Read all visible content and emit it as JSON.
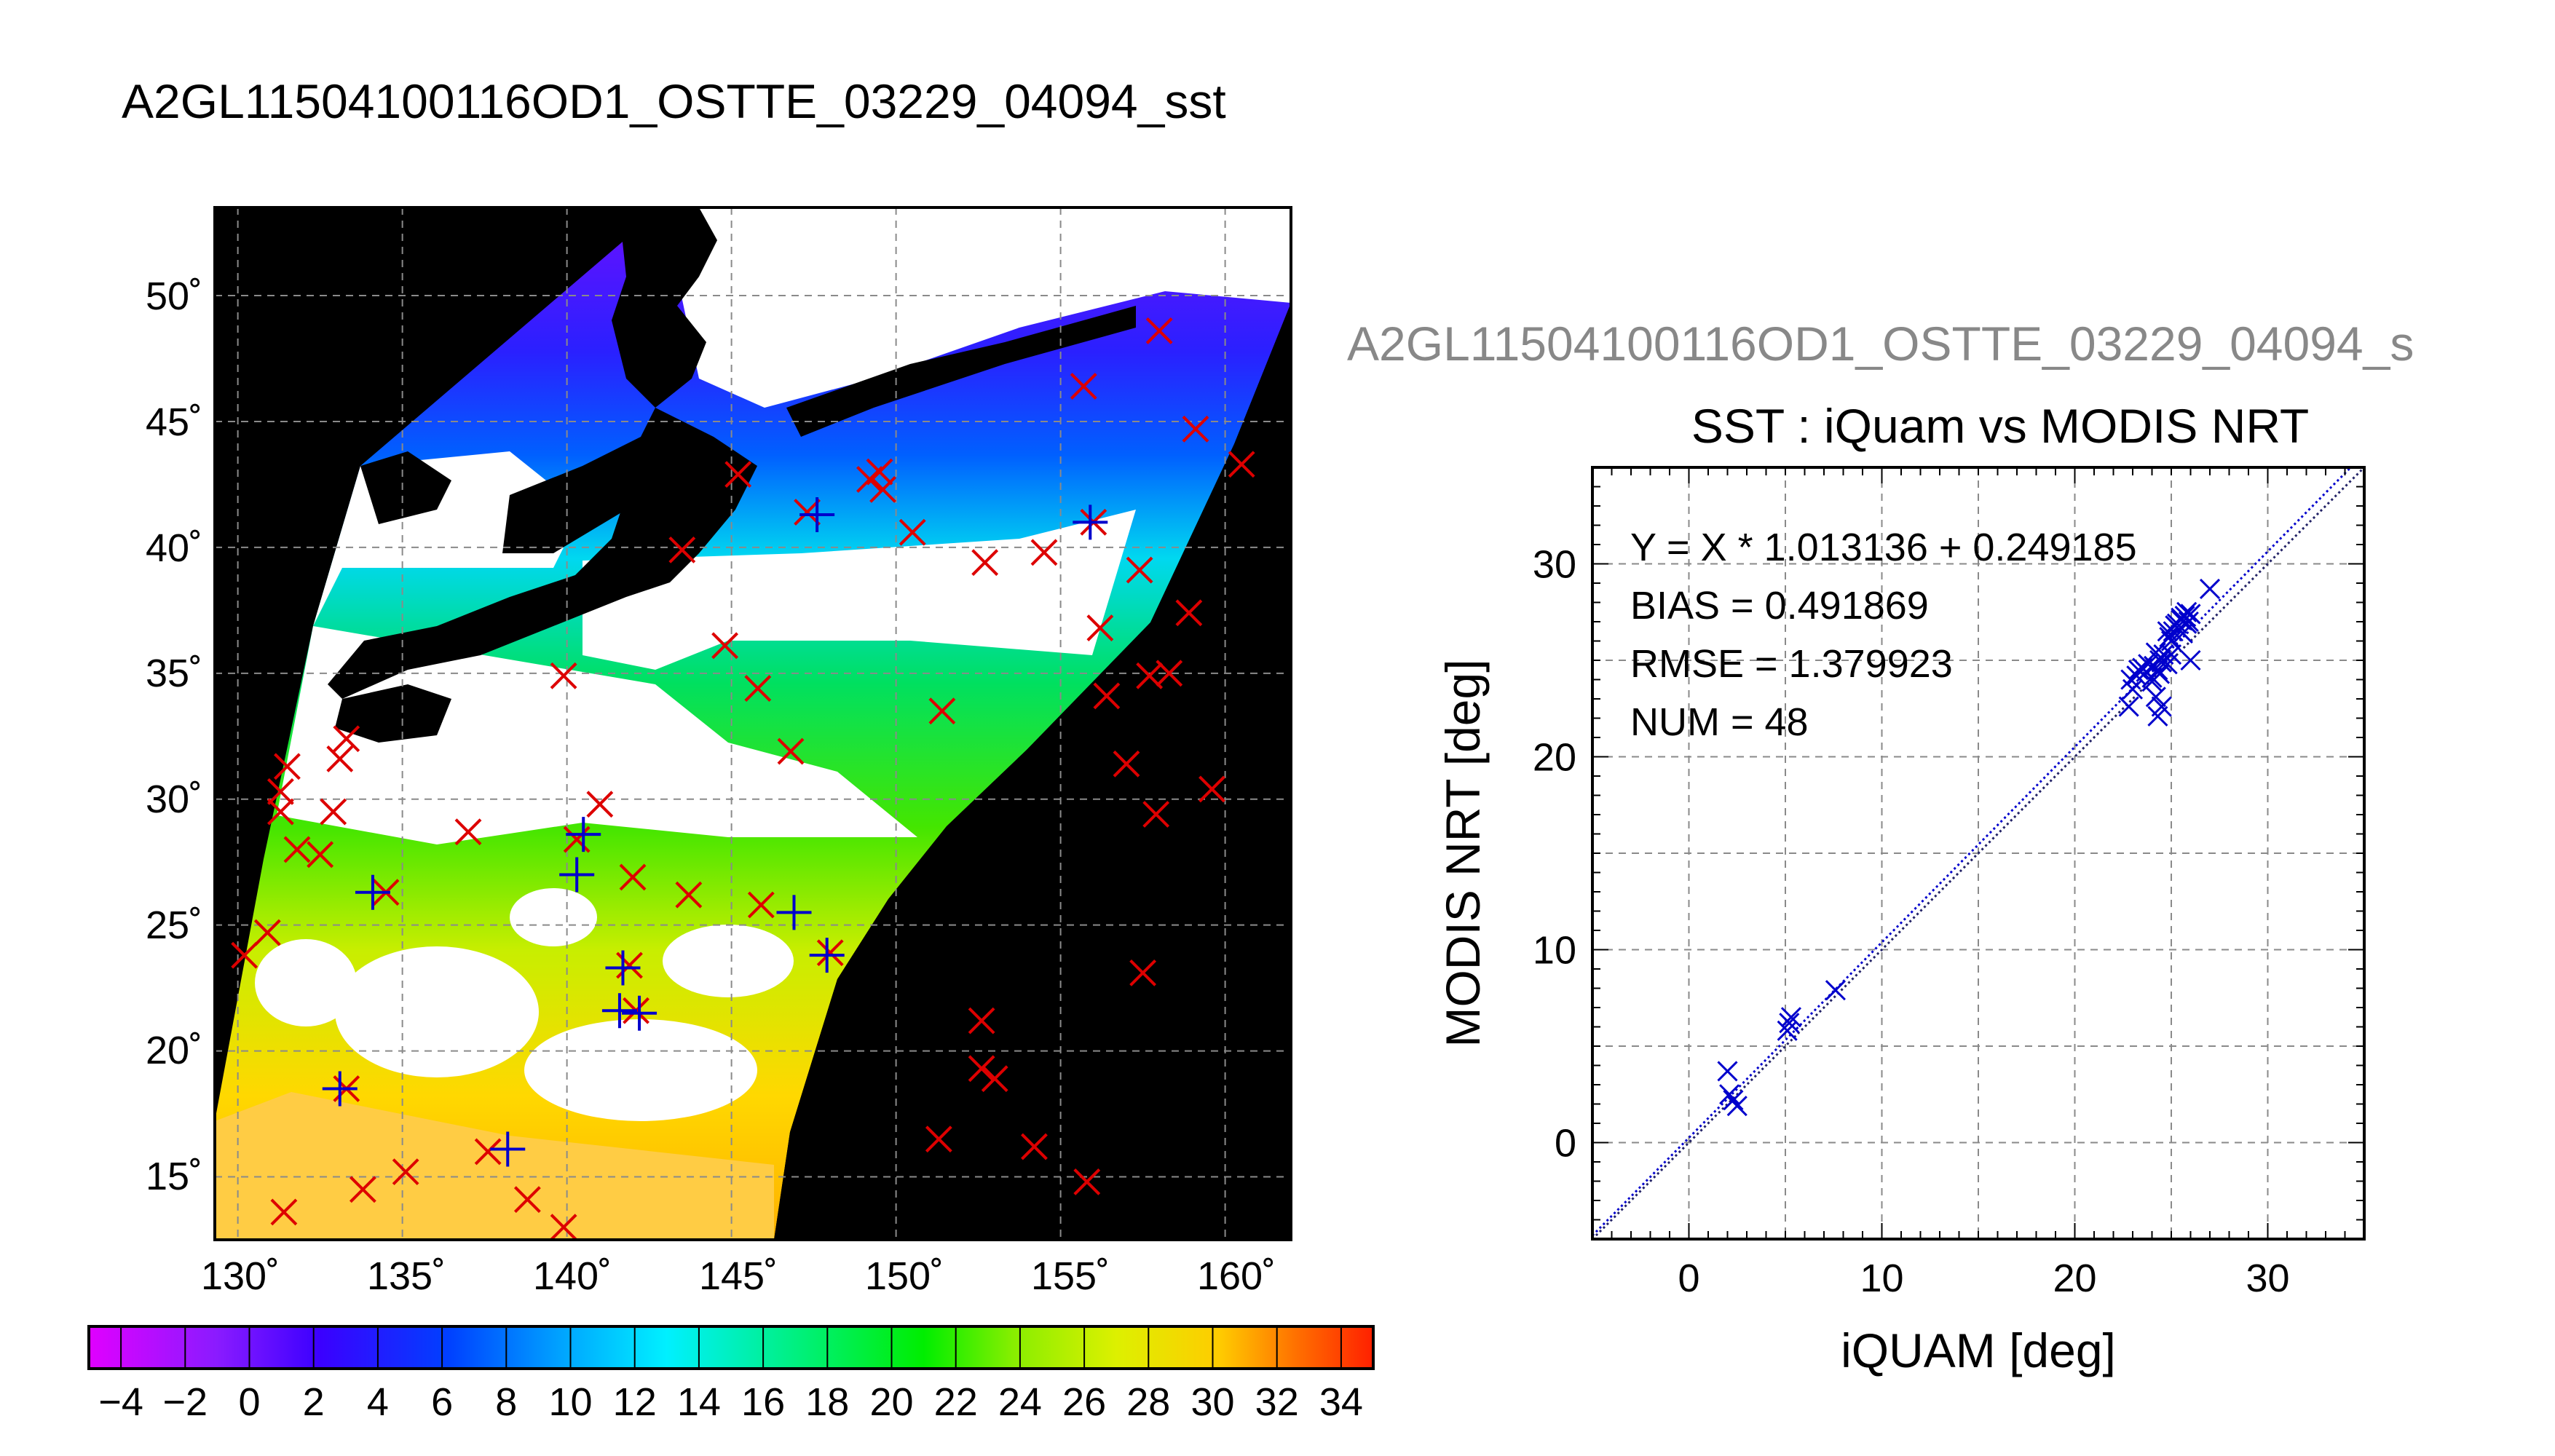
{
  "map": {
    "title": "A2GL11504100116OD1_OSTTE_03229_04094_sst",
    "lon_ticks": [
      "130˚",
      "135˚",
      "140˚",
      "145˚",
      "150˚",
      "155˚",
      "160˚"
    ],
    "lat_ticks": [
      "50˚",
      "45˚",
      "40˚",
      "35˚",
      "30˚",
      "25˚",
      "20˚",
      "15˚"
    ],
    "colorbar_ticks": [
      "−4",
      "−2",
      "0",
      "2",
      "4",
      "6",
      "8",
      "10",
      "12",
      "14",
      "16",
      "18",
      "20",
      "22",
      "24",
      "26",
      "28",
      "30",
      "32",
      "34"
    ],
    "colorbar_range": [
      -5,
      35
    ],
    "colors": {
      "land": "#000000",
      "cloud": "#ffffff",
      "in_situ": "#dd0000",
      "matched": "#0000cc"
    }
  },
  "scatter": {
    "header": "A2GL11504100116OD1_OSTTE_03229_04094_s",
    "title": "SST : iQuam vs MODIS NRT",
    "stats": {
      "equation": "Y = X * 1.013136 + 0.249185",
      "bias": "BIAS = 0.491869",
      "rmse": "RMSE = 1.379923",
      "num": "NUM = 48"
    }
  },
  "chart_data": [
    {
      "type": "scatter",
      "title": "A2GL11504100116OD1_OSTTE_03229_04094_sst",
      "xlabel": "",
      "ylabel": "",
      "xlim": [
        129.3,
        162
      ],
      "ylim": [
        12.5,
        53.5
      ],
      "grid": true,
      "series": [
        {
          "marker": "x",
          "color": "#dd0000",
          "x": [
            130.2,
            130.9,
            131.3,
            131.5,
            131.8,
            132.5,
            132.9,
            133.1,
            133.3,
            134.5,
            133.3,
            131.4,
            137.0,
            140.3,
            141.0,
            142.0,
            142.1,
            141.9,
            143.7,
            143.5,
            145.2,
            145.8,
            146.8,
            147.3,
            148.0,
            149.2,
            150.5,
            151.4,
            152.7,
            152.6,
            153.0,
            155.7,
            156.0,
            157.0,
            157.4,
            158.0,
            157.7,
            158.3,
            158.9,
            159.1,
            160.5,
            155.8,
            152.6,
            151.3,
            154.2,
            157.5,
            159.6,
            139.9,
            133.8,
            135.1,
            137.6,
            138.8,
            139.9,
            131.3,
            144.8,
            149.6,
            149.5,
            156.4,
            156.2,
            154.5,
            157.9,
            145.9
          ],
          "y": [
            23.8,
            24.7,
            30.3,
            31.3,
            28.0,
            27.8,
            29.5,
            31.6,
            32.4,
            26.3,
            18.5,
            13.6,
            28.7,
            28.4,
            29.8,
            26.9,
            21.6,
            23.4,
            26.2,
            39.9,
            42.9,
            34.4,
            31.9,
            41.4,
            23.9,
            42.7,
            40.6,
            33.5,
            39.4,
            19.3,
            18.9,
            46.4,
            41.0,
            31.4,
            39.1,
            48.6,
            34.9,
            35.0,
            37.4,
            44.7,
            43.3,
            14.8,
            21.2,
            16.5,
            16.2,
            23.1,
            30.4,
            34.9,
            14.5,
            15.2,
            16.0,
            14.1,
            13.0,
            29.5,
            36.1,
            42.3,
            43.0,
            34.1,
            36.8,
            39.8,
            29.4,
            25.8
          ]
        },
        {
          "marker": "+",
          "color": "#0000cc",
          "x": [
            140.3,
            141.6,
            142.2,
            141.7,
            146.9,
            147.9,
            155.9,
            147.6,
            134.1,
            133.1,
            138.2,
            140.5
          ],
          "y": [
            27.0,
            21.6,
            21.5,
            23.3,
            25.5,
            23.8,
            41.0,
            41.3,
            26.3,
            18.5,
            16.1,
            28.6
          ]
        }
      ]
    },
    {
      "type": "scatter",
      "title": "SST : iQuam vs MODIS NRT",
      "xlabel": "iQUAM [deg]",
      "ylabel": "MODIS NRT [deg]",
      "xlim": [
        -5,
        35
      ],
      "ylim": [
        -5,
        35
      ],
      "xticks": [
        "0",
        "10",
        "20",
        "30"
      ],
      "yticks": [
        "0",
        "10",
        "20",
        "30"
      ],
      "grid": true,
      "series": [
        {
          "marker": "x",
          "color": "#0000cc",
          "x": [
            2.0,
            2.1,
            2.3,
            2.5,
            5.2,
            5.3,
            5.1,
            7.6,
            22.8,
            23.0,
            23.2,
            23.5,
            23.8,
            24.0,
            24.1,
            24.2,
            24.3,
            24.3,
            24.5,
            24.5,
            24.6,
            24.8,
            25.0,
            25.0,
            25.1,
            25.3,
            25.4,
            25.5,
            25.6,
            25.7,
            25.8,
            25.9,
            26.0,
            26.0,
            27.0,
            22.9,
            24.0,
            24.4,
            24.4,
            25.8,
            24.2,
            23.3,
            24.9,
            24.8,
            25.2,
            25.5,
            24.1,
            23.7
          ],
          "y": [
            3.7,
            2.5,
            2.2,
            1.9,
            6.2,
            6.5,
            5.8,
            7.9,
            22.6,
            23.5,
            24.2,
            24.6,
            24.8,
            24.1,
            24.7,
            23.1,
            24.5,
            22.1,
            24.9,
            22.6,
            25.3,
            24.8,
            26.0,
            25.3,
            26.5,
            26.9,
            26.6,
            27.1,
            26.4,
            27.3,
            27.5,
            27.0,
            27.4,
            25.0,
            28.7,
            24.0,
            23.9,
            25.0,
            24.3,
            26.9,
            25.4,
            24.5,
            26.2,
            26.5,
            26.8,
            27.2,
            24.7,
            24.4
          ]
        }
      ],
      "lines": [
        {
          "name": "fit",
          "slope": 1.013136,
          "intercept": 0.249185
        },
        {
          "name": "one-to-one",
          "slope": 1.0,
          "intercept": 0.0
        }
      ]
    }
  ]
}
